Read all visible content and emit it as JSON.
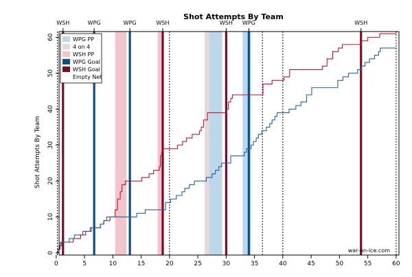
{
  "chart_data": {
    "type": "line",
    "title": "Shot Attempts By Team",
    "ylabel": "Shot Attempts By Team",
    "xlabel": "",
    "xlim": [
      0,
      60
    ],
    "ylim": [
      0,
      61
    ],
    "x_ticks": [
      0,
      5,
      10,
      15,
      20,
      25,
      30,
      35,
      40,
      45,
      50,
      55,
      60
    ],
    "y_ticks": [
      0,
      10,
      20,
      30,
      40,
      50,
      60
    ],
    "colors": {
      "wsh": "#c8102e",
      "wpg": "#1f5fa0",
      "wpg_pp": "#bcd6ea",
      "wsh_pp": "#f2c4cb",
      "four_on_four": "#e8d6e0",
      "wsh_goal": "#7a0b2a",
      "wpg_goal": "#0b4f8a"
    },
    "legend": {
      "placement": "top-left",
      "items": [
        {
          "label": "WPG PP",
          "kind": "wpg_pp"
        },
        {
          "label": "4 on 4",
          "kind": "four_on_four"
        },
        {
          "label": "WSH PP",
          "kind": "wsh_pp"
        },
        {
          "label": "WPG Goal",
          "kind": "wpg_goal"
        },
        {
          "label": "WSH Goal",
          "kind": "wsh_goal"
        },
        {
          "label": "Empty Net",
          "kind": "empty_net"
        }
      ]
    },
    "bands": [
      {
        "kind": "wsh_pp",
        "x0": 10.4,
        "x1": 12.4
      },
      {
        "kind": "wsh_pp",
        "x0": 17.9,
        "x1": 19.0
      },
      {
        "kind": "four_on_four",
        "x0": 26.2,
        "x1": 27.0
      },
      {
        "kind": "wpg_pp",
        "x0": 27.0,
        "x1": 29.3
      },
      {
        "kind": "wpg_pp",
        "x0": 32.9,
        "x1": 34.4
      }
    ],
    "goals": [
      {
        "team": "WSH",
        "x": 1.2
      },
      {
        "team": "WPG",
        "x": 6.7
      },
      {
        "team": "WPG",
        "x": 13.0
      },
      {
        "team": "WSH",
        "x": 18.8
      },
      {
        "team": "WSH",
        "x": 30.0
      },
      {
        "team": "WPG",
        "x": 34.0
      },
      {
        "team": "WSH",
        "x": 53.8
      }
    ],
    "period_lines": [
      20,
      40
    ],
    "empty_net_lines": [
      0.2,
      36.4,
      60
    ],
    "series": [
      {
        "name": "WSH",
        "color_key": "wsh",
        "points": [
          [
            0,
            0
          ],
          [
            0.3,
            1
          ],
          [
            0.6,
            2
          ],
          [
            0.9,
            3
          ],
          [
            1.3,
            3
          ],
          [
            3,
            4
          ],
          [
            4.3,
            5
          ],
          [
            5.2,
            6
          ],
          [
            6,
            7
          ],
          [
            7.2,
            7
          ],
          [
            7.8,
            8
          ],
          [
            8.4,
            9
          ],
          [
            9.5,
            10
          ],
          [
            10.4,
            12
          ],
          [
            10.8,
            15
          ],
          [
            11.3,
            17
          ],
          [
            11.6,
            19
          ],
          [
            12.2,
            20
          ],
          [
            15.1,
            21
          ],
          [
            16.4,
            22
          ],
          [
            17.2,
            23
          ],
          [
            18.2,
            24
          ],
          [
            18.4,
            27
          ],
          [
            18.6,
            28
          ],
          [
            18.9,
            29
          ],
          [
            21.4,
            30
          ],
          [
            22.3,
            31
          ],
          [
            23,
            32
          ],
          [
            24,
            33
          ],
          [
            25.3,
            34
          ],
          [
            25.6,
            35
          ],
          [
            26,
            37
          ],
          [
            26.7,
            39
          ],
          [
            30.1,
            40
          ],
          [
            30.4,
            42
          ],
          [
            30.8,
            43
          ],
          [
            31.1,
            44
          ],
          [
            36.5,
            47
          ],
          [
            38.1,
            48
          ],
          [
            40.2,
            49
          ],
          [
            41.2,
            51
          ],
          [
            47,
            52
          ],
          [
            47.8,
            54
          ],
          [
            48.8,
            56
          ],
          [
            49.8,
            57
          ],
          [
            50.5,
            58
          ],
          [
            53.9,
            59
          ],
          [
            55,
            60
          ],
          [
            57.1,
            61
          ],
          [
            60,
            61
          ]
        ]
      },
      {
        "name": "WPG",
        "color_key": "wpg",
        "points": [
          [
            0,
            0
          ],
          [
            0.3,
            1
          ],
          [
            0.7,
            3
          ],
          [
            1.3,
            3
          ],
          [
            2.3,
            4
          ],
          [
            3.2,
            5
          ],
          [
            4.7,
            6
          ],
          [
            6.2,
            7
          ],
          [
            7.3,
            7
          ],
          [
            7.8,
            8
          ],
          [
            8.4,
            9
          ],
          [
            8.9,
            10
          ],
          [
            13.1,
            10
          ],
          [
            14.2,
            11
          ],
          [
            15.7,
            12
          ],
          [
            18.9,
            12
          ],
          [
            19.3,
            14
          ],
          [
            20.2,
            15
          ],
          [
            21.2,
            16
          ],
          [
            22.2,
            17
          ],
          [
            22.7,
            18
          ],
          [
            23.5,
            19
          ],
          [
            24.4,
            20
          ],
          [
            26.5,
            21
          ],
          [
            27.5,
            22
          ],
          [
            28.1,
            23
          ],
          [
            28.7,
            24
          ],
          [
            29.2,
            25
          ],
          [
            30.8,
            27
          ],
          [
            33.2,
            28
          ],
          [
            33.6,
            29
          ],
          [
            34.4,
            30
          ],
          [
            34.8,
            31
          ],
          [
            35.3,
            32
          ],
          [
            35.7,
            33
          ],
          [
            36.3,
            34
          ],
          [
            37.1,
            35
          ],
          [
            37.7,
            36
          ],
          [
            38.1,
            37
          ],
          [
            38.6,
            38
          ],
          [
            39,
            39
          ],
          [
            41.1,
            40
          ],
          [
            42.3,
            41
          ],
          [
            43.2,
            42
          ],
          [
            44.2,
            44
          ],
          [
            45.1,
            46
          ],
          [
            49.7,
            48
          ],
          [
            50.6,
            49
          ],
          [
            51.6,
            50
          ],
          [
            53.2,
            51
          ],
          [
            53.9,
            52
          ],
          [
            54.5,
            53
          ],
          [
            55.3,
            54
          ],
          [
            56.2,
            55
          ],
          [
            56.9,
            56
          ],
          [
            57.2,
            57
          ],
          [
            60,
            57
          ]
        ]
      }
    ],
    "top_labels": [
      {
        "text": "WSH",
        "x": 1.2
      },
      {
        "text": "WPG",
        "x": 6.7
      },
      {
        "text": "WPG",
        "x": 13.0
      },
      {
        "text": "WSH",
        "x": 18.8
      },
      {
        "text": "WSH",
        "x": 30.0
      },
      {
        "text": "WPG",
        "x": 34.0
      },
      {
        "text": "WSH",
        "x": 53.8
      }
    ],
    "credit": "war-on-ice.com"
  }
}
